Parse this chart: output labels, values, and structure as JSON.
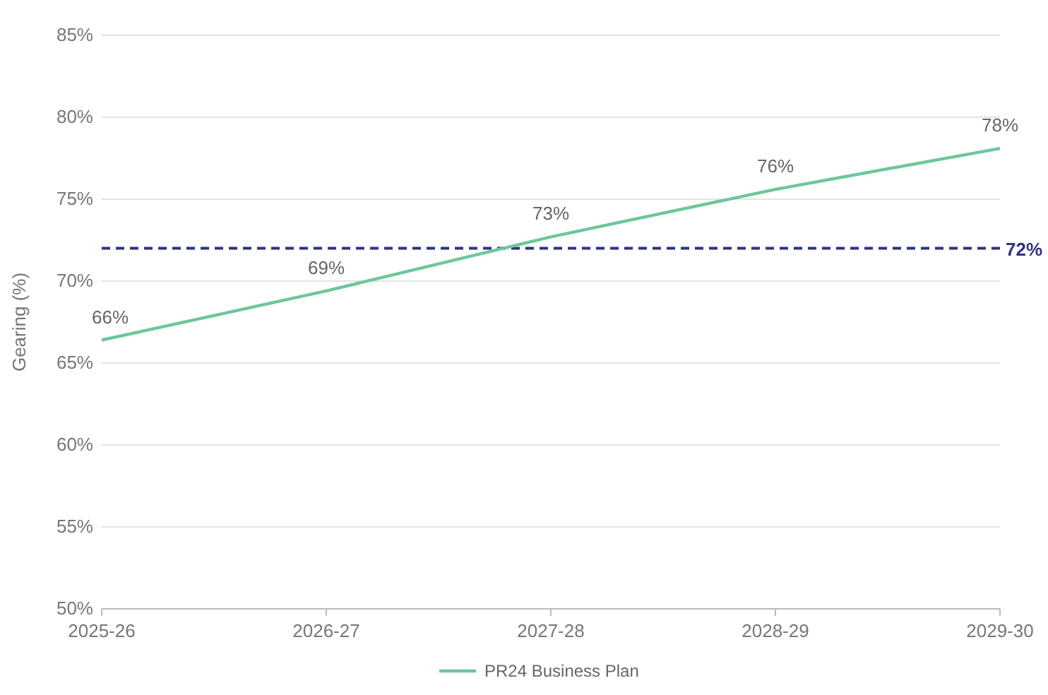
{
  "chart_data": {
    "type": "line",
    "ylabel": "Gearing (%)",
    "categories": [
      "2025-26",
      "2026-27",
      "2027-28",
      "2028-29",
      "2029-30"
    ],
    "series": [
      {
        "name": "PR24 Business Plan",
        "color": "#6cc79a",
        "values": [
          66.4,
          69.4,
          72.7,
          75.6,
          78.1
        ],
        "value_labels": [
          "66%",
          "69%",
          "73%",
          "76%",
          "78%"
        ]
      }
    ],
    "ylim": [
      50,
      85
    ],
    "yticks": [
      {
        "value": 50,
        "label": "50%"
      },
      {
        "value": 55,
        "label": "55%"
      },
      {
        "value": 60,
        "label": "60%"
      },
      {
        "value": 65,
        "label": "65%"
      },
      {
        "value": 70,
        "label": "70%"
      },
      {
        "value": 75,
        "label": "75%"
      },
      {
        "value": 80,
        "label": "80%"
      },
      {
        "value": 85,
        "label": "85%"
      }
    ],
    "ref_lines": [
      {
        "axis": "y",
        "value": 72,
        "label": "72%",
        "color": "#2e3580",
        "line_style": "dashed"
      }
    ],
    "grid": "y",
    "legend": "bottom",
    "marker": "none",
    "line_style": "solid"
  }
}
